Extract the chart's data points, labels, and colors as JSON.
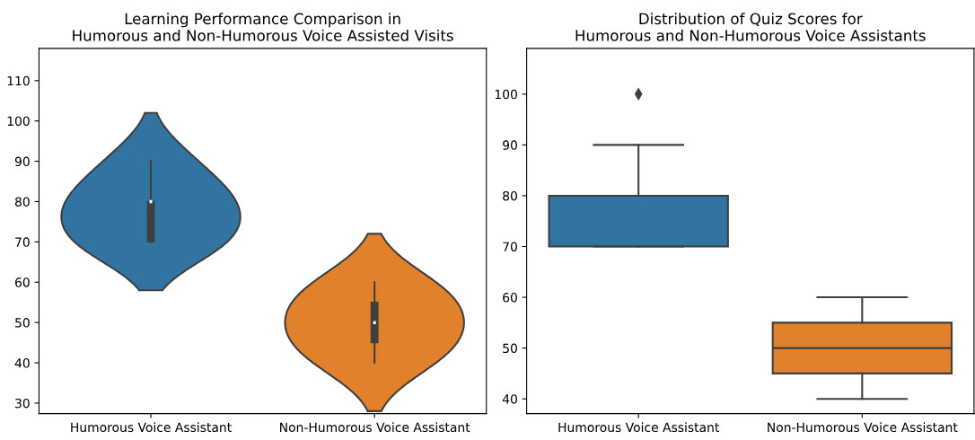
{
  "chart_data": [
    {
      "type": "box",
      "title": "Learning Performance Comparison in\nHumorous and Non-Humorous Voice Assisted Visits",
      "categories": [
        "Humorous Voice Assistant",
        "Non-Humorous Voice Assistant"
      ],
      "colors": [
        "#3f3f3f",
        "#3f3f3f"
      ],
      "boxes": [
        {
          "low": 70,
          "q1": 70,
          "median": 80,
          "q3": 80,
          "high": 90
        },
        {
          "low": 40,
          "q1": 45,
          "median": 50,
          "q3": 55,
          "high": 60
        }
      ],
      "ylim": [
        27.4,
        118
      ],
      "yticks": [
        30,
        40,
        50,
        60,
        70,
        80,
        90,
        100,
        110
      ]
    },
    {
      "type": "box",
      "title": "Distribution of Quiz Scores for\nHumorous and Non-Humorous Voice Assistants",
      "categories": [
        "Humorous Voice Assistant",
        "Non-Humorous Voice Assistant"
      ],
      "colors": [
        "#3274a1",
        "#e1812c"
      ],
      "boxes": [
        {
          "low": 70,
          "q1": 70,
          "median": 80,
          "q3": 80,
          "high": 90,
          "outliers": [
            100
          ]
        },
        {
          "low": 40,
          "q1": 45,
          "median": 50,
          "q3": 55,
          "high": 60
        }
      ],
      "ylim": [
        37.1,
        109
      ],
      "yticks": [
        40,
        50,
        60,
        70,
        80,
        90,
        100
      ]
    }
  ]
}
